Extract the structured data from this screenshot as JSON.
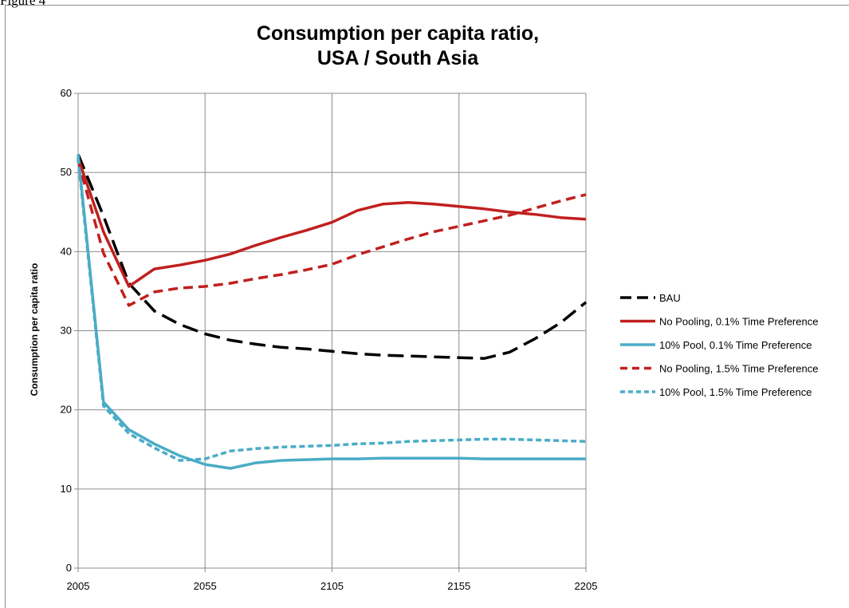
{
  "figure_label": "Figure 4",
  "chart_data": {
    "type": "line",
    "title": "Consumption per capita ratio,",
    "subtitle": "USA / South Asia",
    "xlabel": "",
    "ylabel": "Consumption per capita ratio",
    "xlim": [
      2005,
      2205
    ],
    "ylim": [
      0,
      60
    ],
    "x_ticks": [
      "2005",
      "2055",
      "2105",
      "2155",
      "2205"
    ],
    "y_ticks": [
      "0",
      "10",
      "20",
      "30",
      "40",
      "50",
      "60"
    ],
    "grid": true,
    "legend_position": "right",
    "x": [
      2005,
      2015,
      2025,
      2035,
      2045,
      2055,
      2065,
      2075,
      2085,
      2095,
      2105,
      2115,
      2125,
      2135,
      2145,
      2155,
      2165,
      2175,
      2185,
      2195,
      2205
    ],
    "series": [
      {
        "name": "BAU",
        "color": "#000000",
        "dash": "long-dash",
        "values": [
          52.3,
          44.5,
          36.0,
          32.5,
          30.8,
          29.6,
          28.8,
          28.3,
          27.9,
          27.7,
          27.4,
          27.1,
          26.9,
          26.8,
          26.7,
          26.6,
          26.5,
          27.3,
          29.0,
          31.0,
          33.6
        ]
      },
      {
        "name": "No Pooling, 0.1% Time Preference",
        "color": "#c0201f",
        "dash": "solid",
        "values": [
          51.8,
          42.5,
          35.6,
          37.8,
          38.3,
          38.9,
          39.7,
          40.8,
          41.8,
          42.7,
          43.7,
          45.2,
          46.0,
          46.2,
          46.0,
          45.7,
          45.4,
          45.0,
          44.7,
          44.3,
          44.1
        ]
      },
      {
        "name": "10% Pool, 0.1% Time Preference",
        "color": "#4aacc6",
        "dash": "solid",
        "values": [
          52.3,
          21.0,
          17.5,
          15.7,
          14.2,
          13.1,
          12.6,
          13.3,
          13.6,
          13.7,
          13.8,
          13.8,
          13.9,
          13.9,
          13.9,
          13.9,
          13.8,
          13.8,
          13.8,
          13.8,
          13.8
        ]
      },
      {
        "name": "No Pooling, 1.5% Time Preference",
        "color": "#c0201f",
        "dash": "dash",
        "values": [
          51.5,
          39.8,
          33.2,
          34.9,
          35.4,
          35.6,
          36.0,
          36.6,
          37.1,
          37.7,
          38.4,
          39.6,
          40.6,
          41.6,
          42.5,
          43.2,
          43.9,
          44.6,
          45.5,
          46.4,
          47.2
        ]
      },
      {
        "name": "10% Pool, 1.5% Time Preference",
        "color": "#4aacc6",
        "dash": "short-dash",
        "values": [
          51.8,
          20.5,
          17.0,
          15.2,
          13.6,
          13.8,
          14.8,
          15.1,
          15.3,
          15.4,
          15.5,
          15.7,
          15.8,
          16.0,
          16.1,
          16.2,
          16.3,
          16.3,
          16.2,
          16.1,
          16.0
        ]
      }
    ]
  }
}
